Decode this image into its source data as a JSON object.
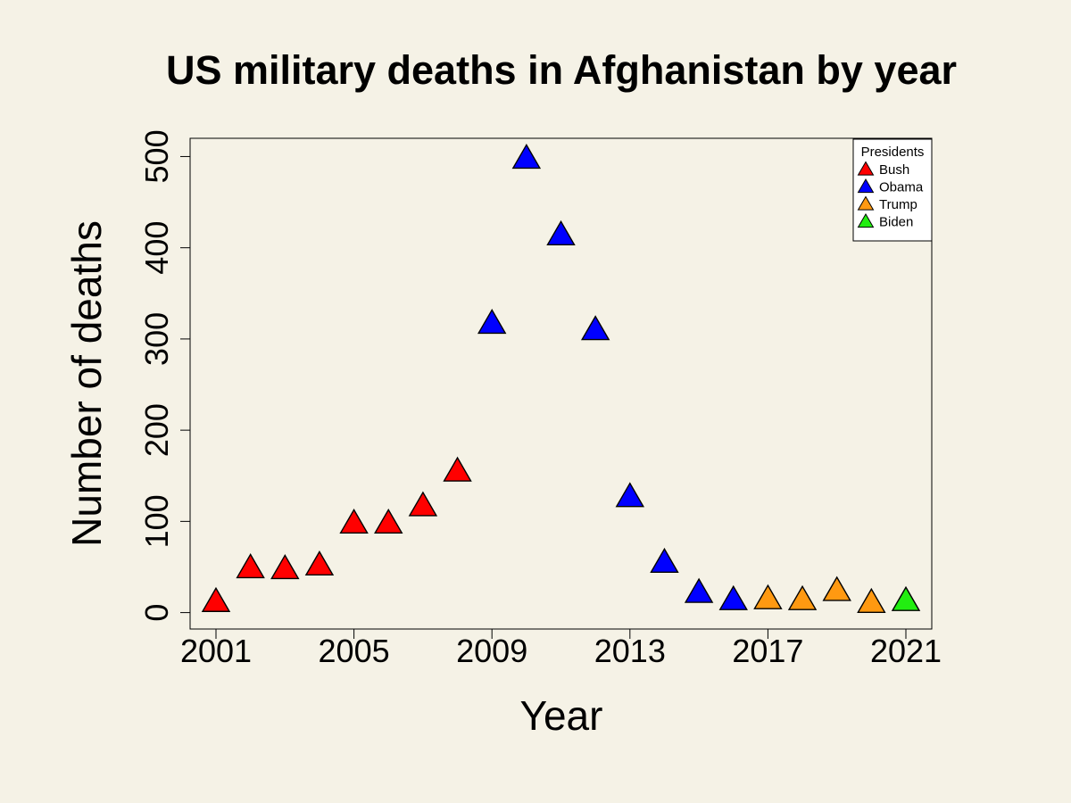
{
  "chart_data": {
    "type": "scatter",
    "title": "US military deaths in Afghanistan by year",
    "xlabel": "Year",
    "ylabel": "Number of deaths",
    "xlim": [
      2000.25,
      2021.75
    ],
    "ylim": [
      -18,
      520
    ],
    "x_ticks": [
      2001,
      2005,
      2009,
      2013,
      2017,
      2021
    ],
    "x_tick_labels": [
      "2001",
      "2005",
      "2009",
      "2013",
      "2017",
      "2021"
    ],
    "y_ticks": [
      0,
      100,
      200,
      300,
      400,
      500
    ],
    "y_tick_labels": [
      "0",
      "100",
      "200",
      "300",
      "400",
      "500"
    ],
    "grid": false,
    "marker": "triangle",
    "legend": {
      "title": "Presidents",
      "position": "top-right"
    },
    "series": [
      {
        "name": "Bush",
        "color": "#ff0000",
        "x": [
          2001,
          2002,
          2003,
          2004,
          2005,
          2006,
          2007,
          2008
        ],
        "y": [
          12,
          49,
          48,
          52,
          98,
          98,
          117,
          155
        ]
      },
      {
        "name": "Obama",
        "color": "#0000ff",
        "x": [
          2009,
          2010,
          2011,
          2012,
          2013,
          2014,
          2015,
          2016
        ],
        "y": [
          317,
          498,
          414,
          310,
          127,
          55,
          22,
          14
        ]
      },
      {
        "name": "Trump",
        "color": "#ff9911",
        "x": [
          2017,
          2018,
          2019,
          2020
        ],
        "y": [
          15,
          14,
          24,
          11
        ]
      },
      {
        "name": "Biden",
        "color": "#22ee11",
        "x": [
          2021
        ],
        "y": [
          13
        ]
      }
    ]
  }
}
